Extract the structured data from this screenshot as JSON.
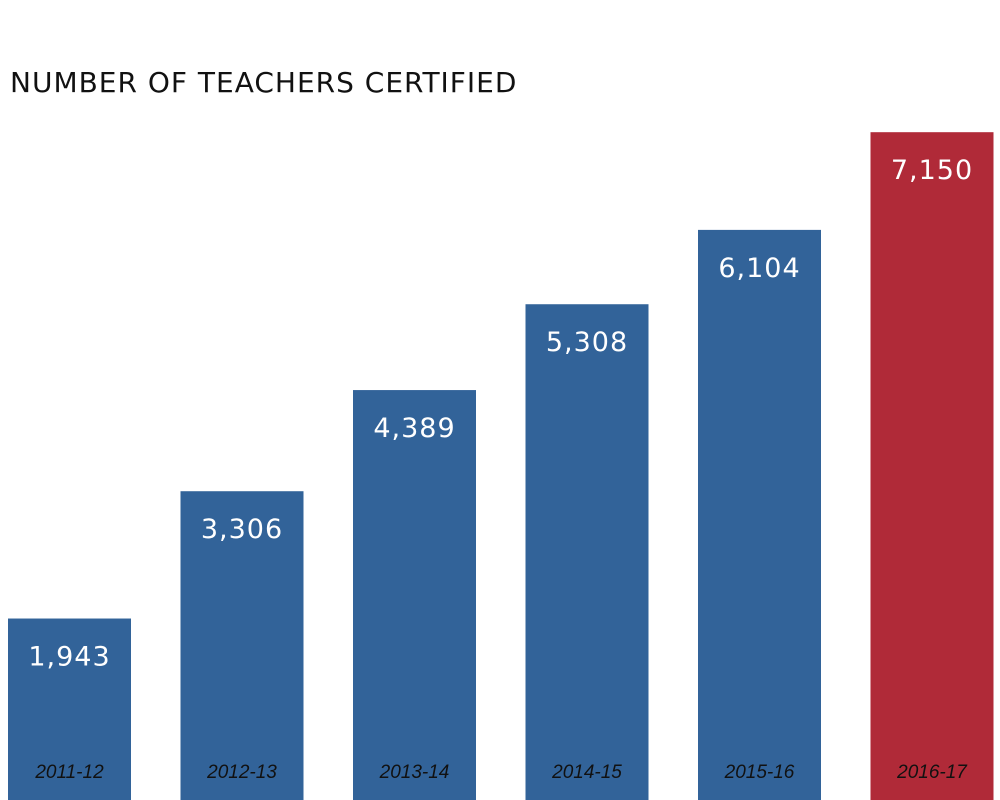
{
  "chart_data": {
    "type": "bar",
    "title": "NUMBER OF TEACHERS CERTIFIED",
    "categories": [
      "2011-12",
      "2012-13",
      "2013-14",
      "2014-15",
      "2015-16",
      "2016-17"
    ],
    "values": [
      1943,
      3306,
      4389,
      5308,
      6104,
      7150
    ],
    "value_labels": [
      "1,943",
      "3,306",
      "4,389",
      "5,308",
      "6,104",
      "7,150"
    ],
    "bar_colors": [
      "#326399",
      "#326399",
      "#326399",
      "#326399",
      "#326399",
      "#B02A38"
    ],
    "highlight_category": "2016-17",
    "grid": false,
    "legend": "none"
  }
}
